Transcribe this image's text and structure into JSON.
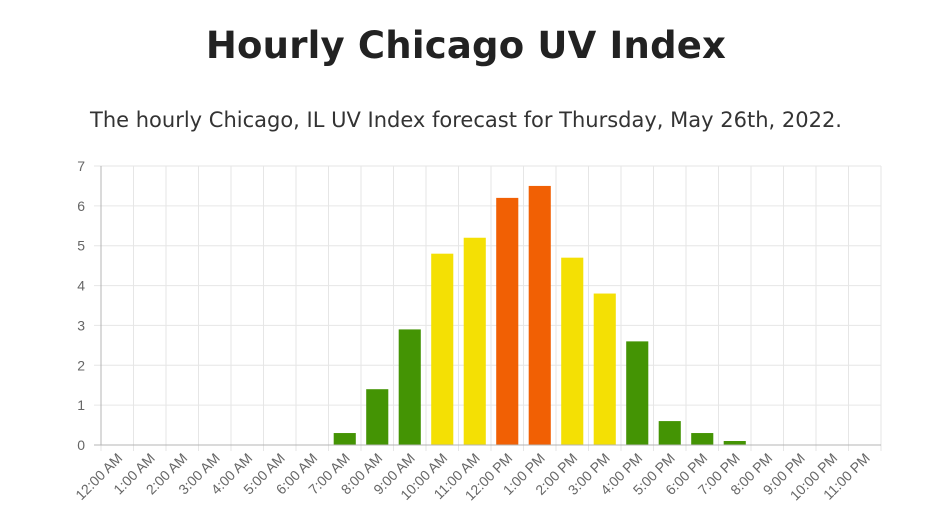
{
  "page": {
    "title": "Hourly Chicago UV Index",
    "subtitle": "The hourly Chicago, IL UV Index forecast for Thursday, May 26th, 2022."
  },
  "colors": {
    "low": "#449404",
    "moderate": "#f4e004",
    "high": "#f16004",
    "grid": "#e6e6e6",
    "axis": "#b4b4b4",
    "tick_label": "#666666"
  },
  "chart_data": {
    "type": "bar",
    "categories": [
      "12:00 AM",
      "1:00 AM",
      "2:00 AM",
      "3:00 AM",
      "4:00 AM",
      "5:00 AM",
      "6:00 AM",
      "7:00 AM",
      "8:00 AM",
      "9:00 AM",
      "10:00 AM",
      "11:00 AM",
      "12:00 PM",
      "1:00 PM",
      "2:00 PM",
      "3:00 PM",
      "4:00 PM",
      "5:00 PM",
      "6:00 PM",
      "7:00 PM",
      "8:00 PM",
      "9:00 PM",
      "10:00 PM",
      "11:00 PM"
    ],
    "values": [
      0,
      0,
      0,
      0,
      0,
      0,
      0,
      0.3,
      1.4,
      2.9,
      4.8,
      5.2,
      6.2,
      6.5,
      4.7,
      3.8,
      2.6,
      0.6,
      0.3,
      0.1,
      0,
      0,
      0,
      0
    ],
    "bar_levels": [
      "low",
      "low",
      "low",
      "low",
      "low",
      "low",
      "low",
      "low",
      "low",
      "low",
      "moderate",
      "moderate",
      "high",
      "high",
      "moderate",
      "moderate",
      "low",
      "low",
      "low",
      "low",
      "low",
      "low",
      "low",
      "low"
    ],
    "yticks": [
      "0",
      "1",
      "2",
      "3",
      "4",
      "5",
      "6",
      "7"
    ],
    "ylim": [
      0,
      7
    ],
    "grid": true,
    "legend": "none",
    "xlabel": "",
    "ylabel": ""
  }
}
